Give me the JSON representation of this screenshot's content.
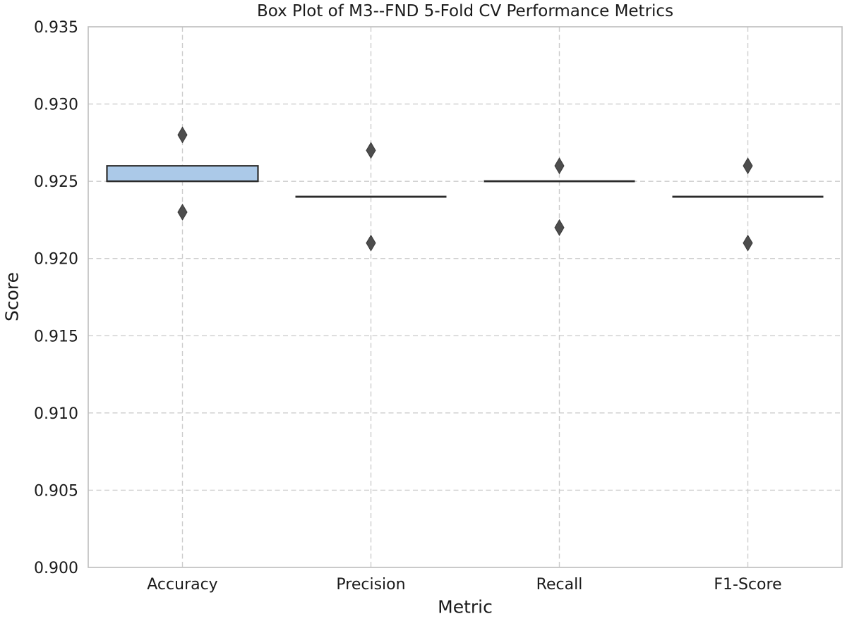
{
  "chart_data": {
    "type": "box",
    "title": "Box Plot of M3--FND 5-Fold CV Performance Metrics",
    "xlabel": "Metric",
    "ylabel": "Score",
    "ylim": [
      0.9,
      0.935
    ],
    "yticks": [
      0.9,
      0.905,
      0.91,
      0.915,
      0.92,
      0.925,
      0.93,
      0.935
    ],
    "ytick_labels": [
      "0.900",
      "0.905",
      "0.910",
      "0.915",
      "0.920",
      "0.925",
      "0.930",
      "0.935"
    ],
    "categories": [
      "Accuracy",
      "Precision",
      "Recall",
      "F1-Score"
    ],
    "grid": true,
    "grid_style": "dashed",
    "legend": false,
    "series": [
      {
        "name": "Accuracy",
        "q1": 0.925,
        "median": 0.925,
        "q3": 0.926,
        "whisker_low": 0.925,
        "whisker_high": 0.926,
        "outliers": [
          0.928,
          0.923
        ]
      },
      {
        "name": "Precision",
        "q1": 0.924,
        "median": 0.924,
        "q3": 0.924,
        "whisker_low": 0.924,
        "whisker_high": 0.924,
        "outliers": [
          0.927,
          0.921
        ]
      },
      {
        "name": "Recall",
        "q1": 0.925,
        "median": 0.925,
        "q3": 0.925,
        "whisker_low": 0.925,
        "whisker_high": 0.925,
        "outliers": [
          0.926,
          0.922
        ]
      },
      {
        "name": "F1-Score",
        "q1": 0.924,
        "median": 0.924,
        "q3": 0.924,
        "whisker_low": 0.924,
        "whisker_high": 0.924,
        "outliers": [
          0.926,
          0.921
        ]
      }
    ],
    "outlier_marker": "thin-diamond",
    "colors": {
      "box_fill": "#abc9e8",
      "box_edge": "#2b2b2b",
      "outlier_fill": "#4d4d4d",
      "outlier_edge": "#3a3a3a",
      "grid": "#cdcdcd",
      "spine": "#bdbdbd",
      "text": "#1a1a1a",
      "background": "#ffffff"
    }
  }
}
